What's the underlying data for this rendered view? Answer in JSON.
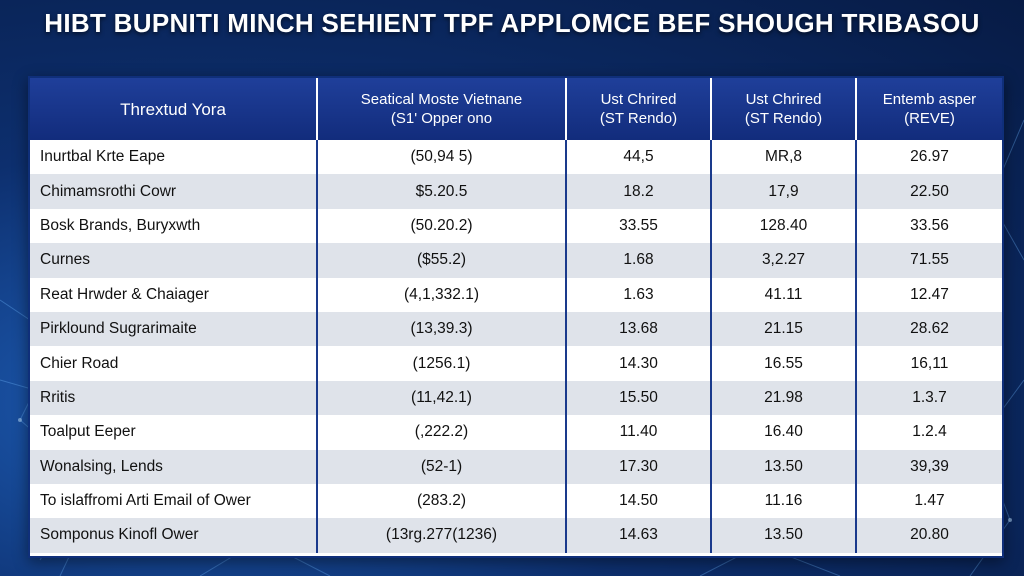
{
  "title": "HIBT BUPNITI MINCH SEHIENT TPF APPLOMCE BEF SHOUGH TRIBASOU",
  "columns": [
    {
      "line1": "Thrextud Yora",
      "line2": ""
    },
    {
      "line1": "Seatical Moste Vietnane",
      "line2": "(S1' Opper ono"
    },
    {
      "line1": "Ust Chrired",
      "line2": "(ST Rendo)"
    },
    {
      "line1": "Ust Chrired",
      "line2": "(ST Rendo)"
    },
    {
      "line1": "Entemb asper",
      "line2": "(REVE)"
    }
  ],
  "rows": [
    [
      "Inurtbal Krte Eape",
      "(50,94 5)",
      "44,5",
      "MR,8",
      "26.97"
    ],
    [
      "Chimamsrothi Cowr",
      "$5.20.5",
      "18.2",
      "17,9",
      "22.50"
    ],
    [
      "Bosk Brands, Buryxwth",
      "(50.20.2)",
      "33.55",
      "128.40",
      "33.56"
    ],
    [
      "Curnes",
      "($55.2)",
      "1.68",
      "3,2.27",
      "71.55"
    ],
    [
      "Reat Hrwder & Chaiager",
      "(4,1,332.1)",
      "1.63",
      "41.11",
      "12.47"
    ],
    [
      "Pirklound Sugrarimaite",
      "(13,39.3)",
      "13.68",
      "21.15",
      "28.62"
    ],
    [
      "Chier Road",
      "(1256.1)",
      "14.30",
      "16.55",
      "16,11"
    ],
    [
      "Rritis",
      "(11,42.1)",
      "15.50",
      "21.98",
      "1.3.7"
    ],
    [
      "Toalput Eeper",
      "(,222.2)",
      "11.40",
      "16.40",
      "1.2.4"
    ],
    [
      "Wonalsing, Lends",
      "(52-1)",
      "17.30",
      "13.50",
      "39,39"
    ],
    [
      "To islaffromi Arti Email of Ower",
      "(283.2)",
      "14.50",
      "11.16",
      "1.47"
    ],
    [
      "Somponus Kinofl Ower",
      "(13rg.277(1236)",
      "14.63",
      "13.50",
      "20.80"
    ]
  ]
}
